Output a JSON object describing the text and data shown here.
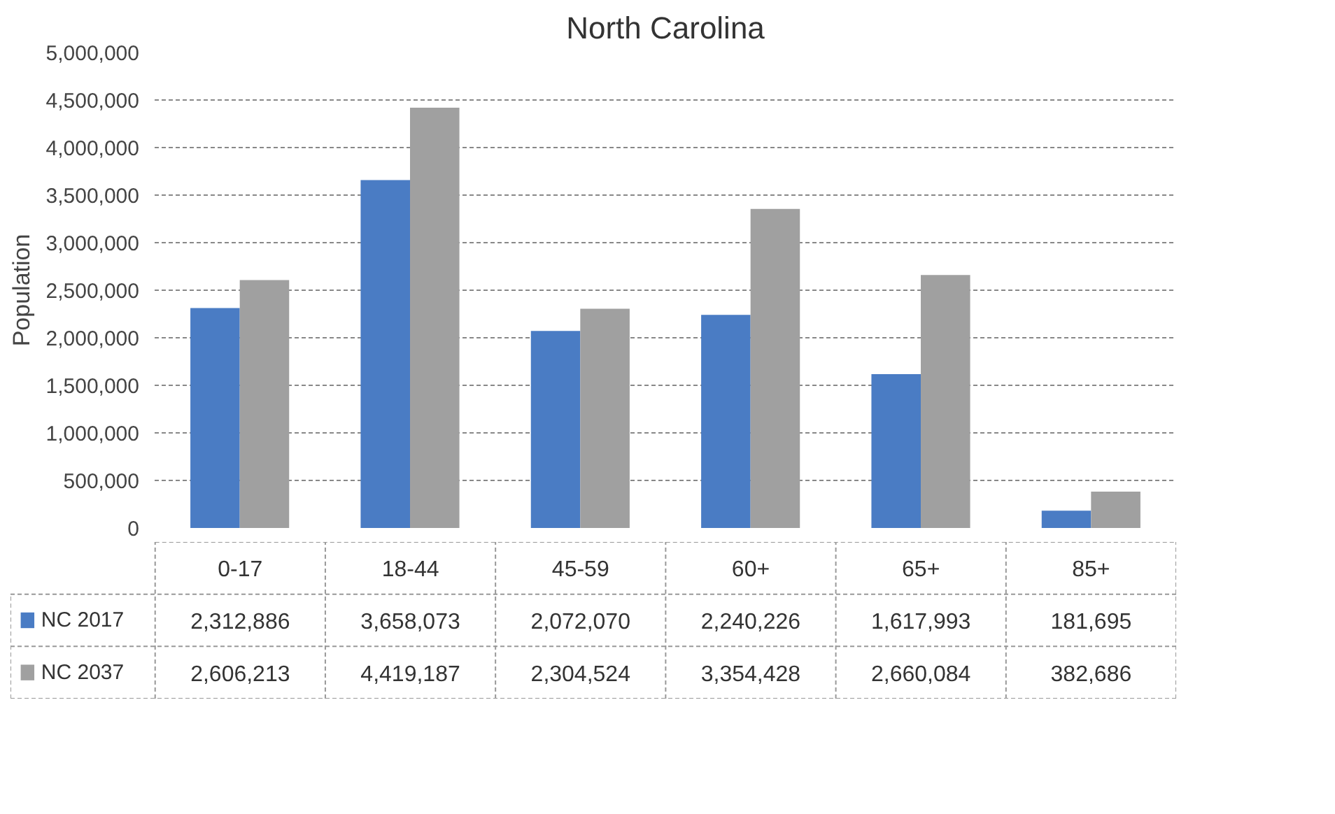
{
  "chart_data": {
    "type": "bar",
    "title": "North Carolina",
    "ylabel": "Population",
    "categories": [
      "0-17",
      "18-44",
      "45-59",
      "60+",
      "65+",
      "85+"
    ],
    "series": [
      {
        "name": "NC 2017",
        "color": "#4a7cc4",
        "values": [
          2312886,
          3658073,
          2072070,
          2240226,
          1617993,
          181695
        ]
      },
      {
        "name": "NC 2037",
        "color": "#a0a0a0",
        "values": [
          2606213,
          4419187,
          2304524,
          3354428,
          2660084,
          382686
        ]
      }
    ],
    "ylim": [
      0,
      5000000
    ],
    "yticks": [
      {
        "value": 0,
        "label": "0"
      },
      {
        "value": 500000,
        "label": "500,000"
      },
      {
        "value": 1000000,
        "label": "1,000,000"
      },
      {
        "value": 1500000,
        "label": "1,500,000"
      },
      {
        "value": 2000000,
        "label": "2,000,000"
      },
      {
        "value": 2500000,
        "label": "2,500,000"
      },
      {
        "value": 3000000,
        "label": "3,000,000"
      },
      {
        "value": 3500000,
        "label": "3,500,000"
      },
      {
        "value": 4000000,
        "label": "4,000,000"
      },
      {
        "value": 4500000,
        "label": "4,500,000"
      },
      {
        "value": 5000000,
        "label": "5,000,000"
      }
    ],
    "grid": "y",
    "legend": "bottom",
    "value_labels": [
      [
        "2,312,886",
        "3,658,073",
        "2,072,070",
        "2,240,226",
        "1,617,993",
        "181,695"
      ],
      [
        "2,606,213",
        "4,419,187",
        "2,304,524",
        "3,354,428",
        "2,660,084",
        "382,686"
      ]
    ]
  }
}
